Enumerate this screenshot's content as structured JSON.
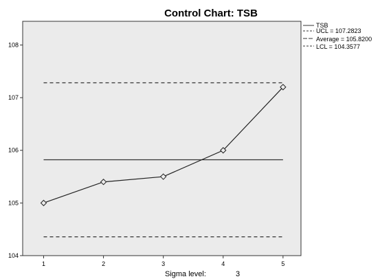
{
  "chart_data": {
    "type": "line",
    "title": "Control Chart: TSB",
    "x": [
      1,
      2,
      3,
      4,
      5
    ],
    "xlim": [
      0.65,
      5.3
    ],
    "ylim": [
      104,
      108.45
    ],
    "yticks": [
      104,
      105,
      106,
      107,
      108
    ],
    "series": [
      {
        "name": "TSB",
        "values": [
          105.0,
          105.4,
          105.5,
          106.0,
          107.2
        ],
        "marker": "diamond",
        "style": "solid"
      }
    ],
    "control_lines": [
      {
        "key": "ucl",
        "label": "UCL = 107.2823",
        "value": 107.2823,
        "style": "dashed"
      },
      {
        "key": "avg",
        "label": "Average = 105.8200",
        "value": 105.82,
        "style": "solid"
      },
      {
        "key": "lcl",
        "label": "LCL = 104.3577",
        "value": 104.3577,
        "style": "dashed"
      }
    ],
    "legend": {
      "placement": "top-right"
    },
    "plot_background": "#ebebeb",
    "footer": {
      "label": "Sigma level:",
      "value": "3"
    }
  }
}
